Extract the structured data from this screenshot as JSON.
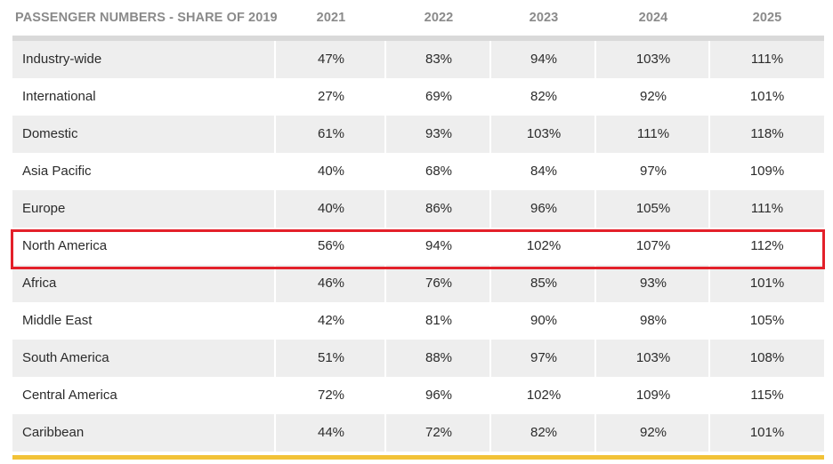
{
  "chart_data": {
    "type": "table",
    "title": "PASSENGER NUMBERS - SHARE OF 2019",
    "columns": [
      "2021",
      "2022",
      "2023",
      "2024",
      "2025"
    ],
    "rows": [
      {
        "label": "Industry-wide",
        "values": [
          "47%",
          "83%",
          "94%",
          "103%",
          "111%"
        ]
      },
      {
        "label": "International",
        "values": [
          "27%",
          "69%",
          "82%",
          "92%",
          "101%"
        ]
      },
      {
        "label": "Domestic",
        "values": [
          "61%",
          "93%",
          "103%",
          "111%",
          "118%"
        ]
      },
      {
        "label": "Asia Pacific",
        "values": [
          "40%",
          "68%",
          "84%",
          "97%",
          "109%"
        ]
      },
      {
        "label": "Europe",
        "values": [
          "40%",
          "86%",
          "96%",
          "105%",
          "111%"
        ]
      },
      {
        "label": "North America",
        "values": [
          "56%",
          "94%",
          "102%",
          "107%",
          "112%"
        ],
        "highlighted": true
      },
      {
        "label": "Africa",
        "values": [
          "46%",
          "76%",
          "85%",
          "93%",
          "101%"
        ]
      },
      {
        "label": "Middle East",
        "values": [
          "42%",
          "81%",
          "90%",
          "98%",
          "105%"
        ]
      },
      {
        "label": "South America",
        "values": [
          "51%",
          "88%",
          "97%",
          "103%",
          "108%"
        ]
      },
      {
        "label": "Central America",
        "values": [
          "72%",
          "96%",
          "102%",
          "109%",
          "115%"
        ]
      },
      {
        "label": "Caribbean",
        "values": [
          "44%",
          "72%",
          "82%",
          "92%",
          "101%"
        ]
      }
    ]
  },
  "colors": {
    "header_text": "#8a8a8a",
    "row_shaded": "#eeeeee",
    "row_plain": "#ffffff",
    "highlight_border": "#e3202a",
    "bottom_accent": "#f2c237"
  }
}
